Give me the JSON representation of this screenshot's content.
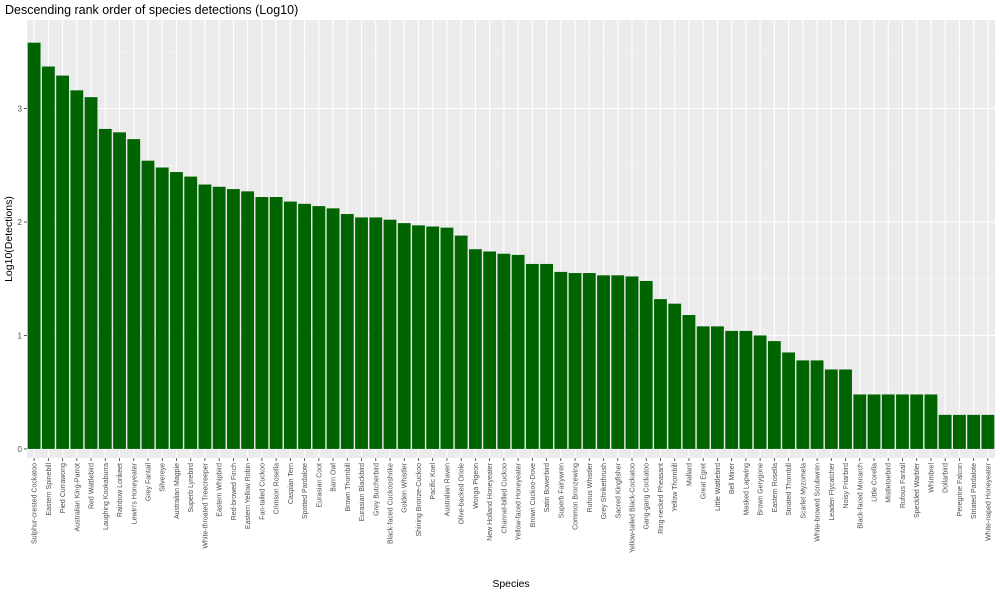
{
  "chart_data": {
    "type": "bar",
    "title": "Descending rank order of species detections (Log10)",
    "xlabel": "Species",
    "ylabel": "Log10(Detections)",
    "ylim": [
      -0.08,
      3.78
    ],
    "yticks": [
      0,
      1,
      2,
      3
    ],
    "grid": true,
    "bar_color": "#006400",
    "panel_color": "#ebebeb",
    "categories": [
      "Sulphur-crested Cockatoo",
      "Eastern Spinebill",
      "Pied Currawong",
      "Australian King-Parrot",
      "Red Wattlebird",
      "Laughing Kookaburra",
      "Rainbow Lorikeet",
      "Lewin's Honeyeater",
      "Grey Fantail",
      "Silvereye",
      "Australian Magpie",
      "Superb Lyrebird",
      "White-throated Treecreeper",
      "Eastern Whipbird",
      "Red-browed Finch",
      "Eastern Yellow Robin",
      "Fan-tailed Cuckoo",
      "Crimson Rosella",
      "Caspian Tern",
      "Spotted Pardalote",
      "Eurasian Coot",
      "Barn Owl",
      "Brown Thornbill",
      "Eurasian Blackbird",
      "Grey Butcherbird",
      "Black-faced Cuckooshrike",
      "Golden Whistler",
      "Shining Bronze-Cuckoo",
      "Pacific Koel",
      "Australian Raven",
      "Olive-backed Oriole",
      "Wonga Pigeon",
      "New Holland Honeyeater",
      "Channel-billed Cuckoo",
      "Yellow-faced Honeyeater",
      "Brown Cuckoo-Dove",
      "Satin Bowerbird",
      "Superb Fairywren",
      "Common Bronzewing",
      "Rufous Whistler",
      "Grey Shrikethrush",
      "Sacred Kingfisher",
      "Yellow-tailed Black-Cockatoo",
      "Gang-gang Cockatoo",
      "Ring-necked Pheasant",
      "Yellow Thornbill",
      "Mallard",
      "Great Egret",
      "Little Wattlebird",
      "Bell Miner",
      "Masked Lapwing",
      "Brown Gerygone",
      "Eastern Rosella",
      "Striated Thornbill",
      "Scarlet Myzomela",
      "White-browed Scrubwren",
      "Leaden Flycatcher",
      "Noisy Friarbird",
      "Black-faced Monarch",
      "Little Corella",
      "Mistletoebird",
      "Rufous Fantail",
      "Speckled Warbler",
      "Whimbrel",
      "Dollarbird",
      "Peregrine Falcon",
      "Striated Pardalote",
      "White-naped Honeyeater"
    ],
    "values": [
      3.58,
      3.37,
      3.29,
      3.16,
      3.1,
      2.82,
      2.79,
      2.73,
      2.54,
      2.48,
      2.44,
      2.4,
      2.33,
      2.31,
      2.29,
      2.27,
      2.22,
      2.22,
      2.18,
      2.16,
      2.14,
      2.12,
      2.07,
      2.04,
      2.04,
      2.02,
      1.99,
      1.97,
      1.96,
      1.95,
      1.88,
      1.76,
      1.74,
      1.72,
      1.71,
      1.63,
      1.63,
      1.56,
      1.55,
      1.55,
      1.53,
      1.53,
      1.52,
      1.48,
      1.32,
      1.28,
      1.18,
      1.08,
      1.08,
      1.04,
      1.04,
      1.0,
      0.95,
      0.85,
      0.78,
      0.78,
      0.7,
      0.7,
      0.48,
      0.48,
      0.48,
      0.48,
      0.48,
      0.48,
      0.3,
      0.3,
      0.3,
      0.3
    ]
  }
}
